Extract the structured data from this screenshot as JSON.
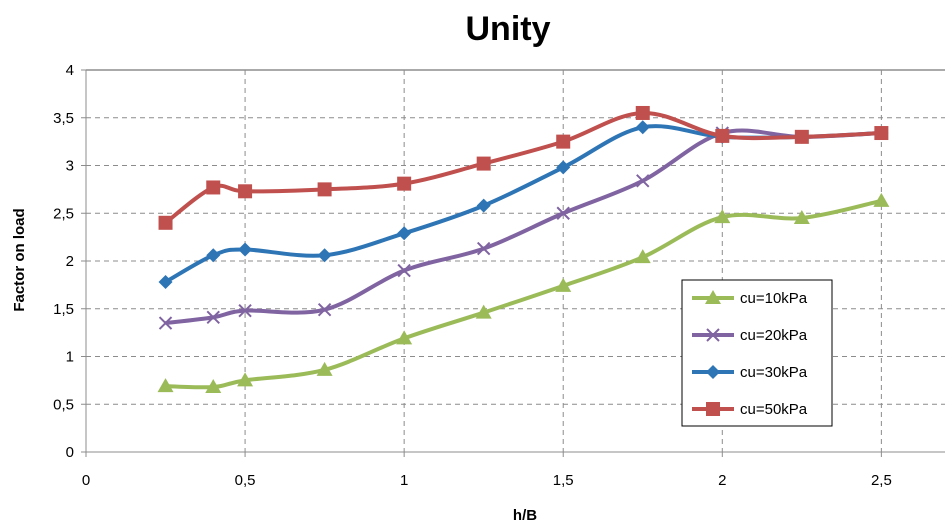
{
  "chart_data": {
    "type": "line",
    "title": "Unity",
    "xlabel": "h/B",
    "ylabel": "Factor on load",
    "xlim": [
      0,
      2.7
    ],
    "ylim": [
      0,
      4
    ],
    "x_ticks": [
      {
        "value": 0,
        "label": "0"
      },
      {
        "value": 0.5,
        "label": "0,5"
      },
      {
        "value": 1,
        "label": "1"
      },
      {
        "value": 1.5,
        "label": "1,5"
      },
      {
        "value": 2,
        "label": "2"
      },
      {
        "value": 2.5,
        "label": "2,5"
      }
    ],
    "y_ticks": [
      {
        "value": 0,
        "label": "0"
      },
      {
        "value": 0.5,
        "label": "0,5"
      },
      {
        "value": 1,
        "label": "1"
      },
      {
        "value": 1.5,
        "label": "1,5"
      },
      {
        "value": 2,
        "label": "2"
      },
      {
        "value": 2.5,
        "label": "2,5"
      },
      {
        "value": 3,
        "label": "3"
      },
      {
        "value": 3.5,
        "label": "3,5"
      },
      {
        "value": 4,
        "label": "4"
      }
    ],
    "grid": true,
    "legend_position": "right",
    "series": [
      {
        "name": "cu=10kPa",
        "color": "#9bbb59",
        "marker": "triangle",
        "x": [
          0.25,
          0.4,
          0.5,
          0.75,
          1,
          1.25,
          1.5,
          1.75,
          2,
          2.25,
          2.5
        ],
        "y": [
          0.69,
          0.68,
          0.75,
          0.86,
          1.19,
          1.46,
          1.74,
          2.04,
          2.46,
          2.45,
          2.63
        ]
      },
      {
        "name": "cu=20kPa",
        "color": "#8064a2",
        "marker": "x",
        "x": [
          0.25,
          0.4,
          0.5,
          0.75,
          1,
          1.25,
          1.5,
          1.75,
          2,
          2.25,
          2.5
        ],
        "y": [
          1.35,
          1.41,
          1.48,
          1.49,
          1.9,
          2.13,
          2.5,
          2.84,
          3.34,
          3.3,
          3.34
        ]
      },
      {
        "name": "cu=30kPa",
        "color": "#2e75b6",
        "marker": "diamond",
        "x": [
          0.25,
          0.4,
          0.5,
          0.75,
          1,
          1.25,
          1.5,
          1.75,
          2,
          2.25,
          2.5
        ],
        "y": [
          1.78,
          2.06,
          2.12,
          2.06,
          2.29,
          2.58,
          2.98,
          3.4,
          3.3,
          3.3,
          3.34
        ]
      },
      {
        "name": "cu=50kPa",
        "color": "#c0504d",
        "marker": "square",
        "x": [
          0.25,
          0.4,
          0.5,
          0.75,
          1,
          1.25,
          1.5,
          1.75,
          2,
          2.25,
          2.5
        ],
        "y": [
          2.4,
          2.77,
          2.73,
          2.75,
          2.81,
          3.02,
          3.25,
          3.55,
          3.31,
          3.3,
          3.34
        ]
      }
    ]
  }
}
